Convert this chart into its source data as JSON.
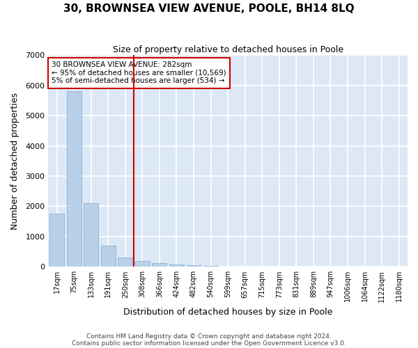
{
  "title": "30, BROWNSEA VIEW AVENUE, POOLE, BH14 8LQ",
  "subtitle": "Size of property relative to detached houses in Poole",
  "xlabel": "Distribution of detached houses by size in Poole",
  "ylabel": "Number of detached properties",
  "bar_color": "#b8d0e8",
  "bar_edge_color": "#8ab0d0",
  "background_color": "#dce8f5",
  "grid_color": "#ffffff",
  "vline_color": "#cc0000",
  "annotation_text": "30 BROWNSEA VIEW AVENUE: 282sqm\n← 95% of detached houses are smaller (10,569)\n5% of semi-detached houses are larger (534) →",
  "annotation_box_color": "#ffffff",
  "annotation_box_edge": "#cc0000",
  "bins": [
    "17sqm",
    "75sqm",
    "133sqm",
    "191sqm",
    "250sqm",
    "308sqm",
    "366sqm",
    "424sqm",
    "482sqm",
    "540sqm",
    "599sqm",
    "657sqm",
    "715sqm",
    "773sqm",
    "831sqm",
    "889sqm",
    "947sqm",
    "1006sqm",
    "1064sqm",
    "1122sqm",
    "1180sqm"
  ],
  "values": [
    1750,
    5800,
    2100,
    700,
    310,
    200,
    130,
    80,
    50,
    30,
    15,
    10,
    5,
    0,
    0,
    0,
    0,
    0,
    0,
    0,
    0
  ],
  "vline_pos": 4.5,
  "ylim": [
    0,
    7000
  ],
  "yticks": [
    0,
    1000,
    2000,
    3000,
    4000,
    5000,
    6000,
    7000
  ],
  "footer_line1": "Contains HM Land Registry data © Crown copyright and database right 2024.",
  "footer_line2": "Contains public sector information licensed under the Open Government Licence v3.0.",
  "figsize": [
    6.0,
    5.0
  ],
  "dpi": 100
}
